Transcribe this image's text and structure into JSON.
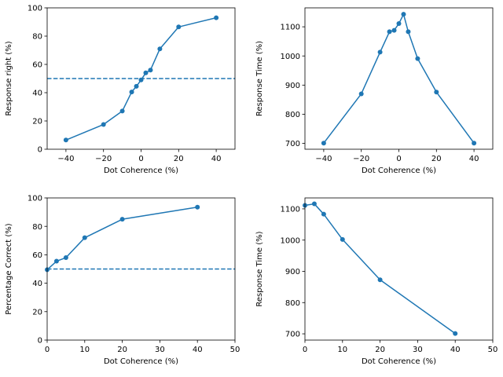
{
  "colors": {
    "series": "#1f77b4",
    "axis": "#000000",
    "background": "#ffffff"
  },
  "chart_data": [
    {
      "type": "line",
      "title": "",
      "xlabel": "Dot Coherence (%)",
      "ylabel": "Response right (%)",
      "xlim": [
        -50,
        50
      ],
      "ylim": [
        0,
        100
      ],
      "xticks": [
        -40,
        -20,
        0,
        20,
        40
      ],
      "yticks": [
        0,
        20,
        40,
        60,
        80,
        100
      ],
      "tick_labels_x": [
        "−40",
        "−20",
        "0",
        "20",
        "40"
      ],
      "tick_labels_y": [
        "0",
        "20",
        "40",
        "60",
        "80",
        "100"
      ],
      "grid": false,
      "legend": false,
      "reference_line": {
        "axis": "y",
        "value": 50,
        "style": "dashed"
      },
      "series": [
        {
          "x": [
            -40,
            -20,
            -10,
            -5,
            -2.5,
            0,
            2.5,
            5,
            10,
            20,
            40
          ],
          "y": [
            6.5,
            17.5,
            27,
            40.5,
            44.5,
            49,
            54,
            56,
            71,
            86.5,
            93
          ]
        }
      ]
    },
    {
      "type": "line",
      "title": "",
      "xlabel": "Dot Coherence (%)",
      "ylabel": "Response Time (%)",
      "xlim": [
        -50,
        50
      ],
      "ylim": [
        680,
        1165
      ],
      "xticks": [
        -40,
        -20,
        0,
        20,
        40
      ],
      "yticks": [
        700,
        800,
        900,
        1000,
        1100
      ],
      "tick_labels_x": [
        "−40",
        "−20",
        "0",
        "20",
        "40"
      ],
      "tick_labels_y": [
        "700",
        "800",
        "900",
        "1000",
        "1100"
      ],
      "grid": false,
      "legend": false,
      "series": [
        {
          "x": [
            -40,
            -20,
            -10,
            -5,
            -2.5,
            0,
            2.5,
            5,
            10,
            20,
            40
          ],
          "y": [
            701,
            870,
            1013,
            1083,
            1088,
            1111,
            1143,
            1083,
            991,
            876,
            701
          ]
        }
      ]
    },
    {
      "type": "line",
      "title": "",
      "xlabel": "Dot Coherence (%)",
      "ylabel": "Percentage Correct (%)",
      "xlim": [
        0,
        50
      ],
      "ylim": [
        0,
        100
      ],
      "xticks": [
        0,
        10,
        20,
        30,
        40,
        50
      ],
      "yticks": [
        0,
        20,
        40,
        60,
        80,
        100
      ],
      "tick_labels_x": [
        "0",
        "10",
        "20",
        "30",
        "40",
        "50"
      ],
      "tick_labels_y": [
        "0",
        "20",
        "40",
        "60",
        "80",
        "100"
      ],
      "grid": false,
      "legend": false,
      "reference_line": {
        "axis": "y",
        "value": 50,
        "style": "dashed"
      },
      "series": [
        {
          "x": [
            0,
            2.5,
            5,
            10,
            20,
            40
          ],
          "y": [
            49.5,
            55.5,
            58,
            72,
            85,
            93.5
          ]
        }
      ]
    },
    {
      "type": "line",
      "title": "",
      "xlabel": "Dot Coherence (%)",
      "ylabel": "Response Time (%)",
      "xlim": [
        0,
        50
      ],
      "ylim": [
        680,
        1135
      ],
      "xticks": [
        0,
        10,
        20,
        30,
        40,
        50
      ],
      "yticks": [
        700,
        800,
        900,
        1000,
        1100
      ],
      "tick_labels_x": [
        "0",
        "10",
        "20",
        "30",
        "40",
        "50"
      ],
      "tick_labels_y": [
        "700",
        "800",
        "900",
        "1000",
        "1100"
      ],
      "grid": false,
      "legend": false,
      "series": [
        {
          "x": [
            0,
            2.5,
            5,
            10,
            20,
            40
          ],
          "y": [
            1111,
            1116,
            1083,
            1002,
            873,
            701
          ]
        }
      ]
    }
  ]
}
